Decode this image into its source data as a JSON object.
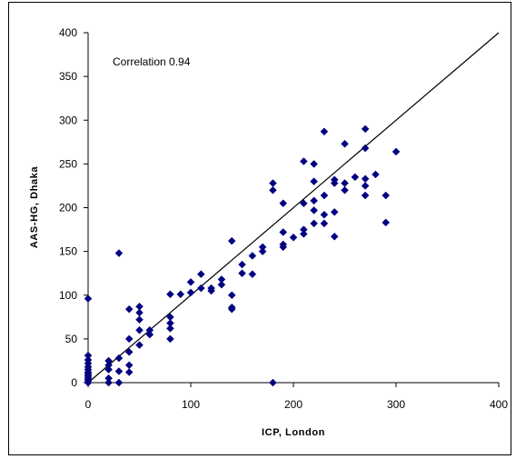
{
  "chart_data": {
    "type": "scatter",
    "title": "",
    "annotation": "Correlation 0.94",
    "xlabel": "ICP, London",
    "ylabel": "AAS-HG, Dhaka",
    "xlim": [
      0,
      400
    ],
    "ylim": [
      0,
      400
    ],
    "xticks": [
      0,
      100,
      200,
      300,
      400
    ],
    "yticks": [
      0,
      50,
      100,
      150,
      200,
      250,
      300,
      350,
      400
    ],
    "grid": false,
    "legend": "none",
    "marker": "diamond",
    "marker_color": "#000080",
    "reference_line": {
      "from": [
        0,
        0
      ],
      "to": [
        400,
        400
      ],
      "color": "#000000"
    },
    "points": [
      [
        0,
        0
      ],
      [
        0,
        2
      ],
      [
        0,
        4
      ],
      [
        0,
        6
      ],
      [
        0,
        8
      ],
      [
        0,
        10
      ],
      [
        0,
        12
      ],
      [
        0,
        15
      ],
      [
        0,
        18
      ],
      [
        0,
        22
      ],
      [
        0,
        26
      ],
      [
        0,
        31
      ],
      [
        0,
        96
      ],
      [
        20,
        0
      ],
      [
        20,
        5
      ],
      [
        20,
        15
      ],
      [
        20,
        20
      ],
      [
        20,
        25
      ],
      [
        30,
        0
      ],
      [
        30,
        13
      ],
      [
        30,
        28
      ],
      [
        30,
        148
      ],
      [
        40,
        12
      ],
      [
        40,
        20
      ],
      [
        40,
        35
      ],
      [
        40,
        50
      ],
      [
        40,
        84
      ],
      [
        50,
        43
      ],
      [
        50,
        60
      ],
      [
        50,
        72
      ],
      [
        50,
        80
      ],
      [
        50,
        87
      ],
      [
        60,
        55
      ],
      [
        60,
        60
      ],
      [
        80,
        50
      ],
      [
        80,
        62
      ],
      [
        80,
        68
      ],
      [
        80,
        75
      ],
      [
        80,
        101
      ],
      [
        90,
        101
      ],
      [
        100,
        103
      ],
      [
        100,
        115
      ],
      [
        110,
        108
      ],
      [
        110,
        124
      ],
      [
        120,
        105
      ],
      [
        120,
        108
      ],
      [
        130,
        112
      ],
      [
        130,
        118
      ],
      [
        140,
        84
      ],
      [
        140,
        86
      ],
      [
        140,
        100
      ],
      [
        140,
        162
      ],
      [
        150,
        125
      ],
      [
        150,
        135
      ],
      [
        160,
        124
      ],
      [
        160,
        145
      ],
      [
        170,
        150
      ],
      [
        170,
        155
      ],
      [
        180,
        0
      ],
      [
        180,
        220
      ],
      [
        180,
        228
      ],
      [
        190,
        155
      ],
      [
        190,
        158
      ],
      [
        190,
        172
      ],
      [
        190,
        205
      ],
      [
        200,
        166
      ],
      [
        210,
        170
      ],
      [
        210,
        175
      ],
      [
        210,
        205
      ],
      [
        210,
        253
      ],
      [
        220,
        182
      ],
      [
        220,
        197
      ],
      [
        220,
        208
      ],
      [
        220,
        230
      ],
      [
        220,
        250
      ],
      [
        230,
        182
      ],
      [
        230,
        192
      ],
      [
        230,
        214
      ],
      [
        230,
        287
      ],
      [
        240,
        167
      ],
      [
        240,
        195
      ],
      [
        240,
        228
      ],
      [
        240,
        232
      ],
      [
        250,
        220
      ],
      [
        250,
        228
      ],
      [
        250,
        273
      ],
      [
        260,
        235
      ],
      [
        270,
        214
      ],
      [
        270,
        225
      ],
      [
        270,
        233
      ],
      [
        270,
        268
      ],
      [
        270,
        290
      ],
      [
        280,
        238
      ],
      [
        290,
        183
      ],
      [
        290,
        214
      ],
      [
        300,
        264
      ]
    ]
  }
}
